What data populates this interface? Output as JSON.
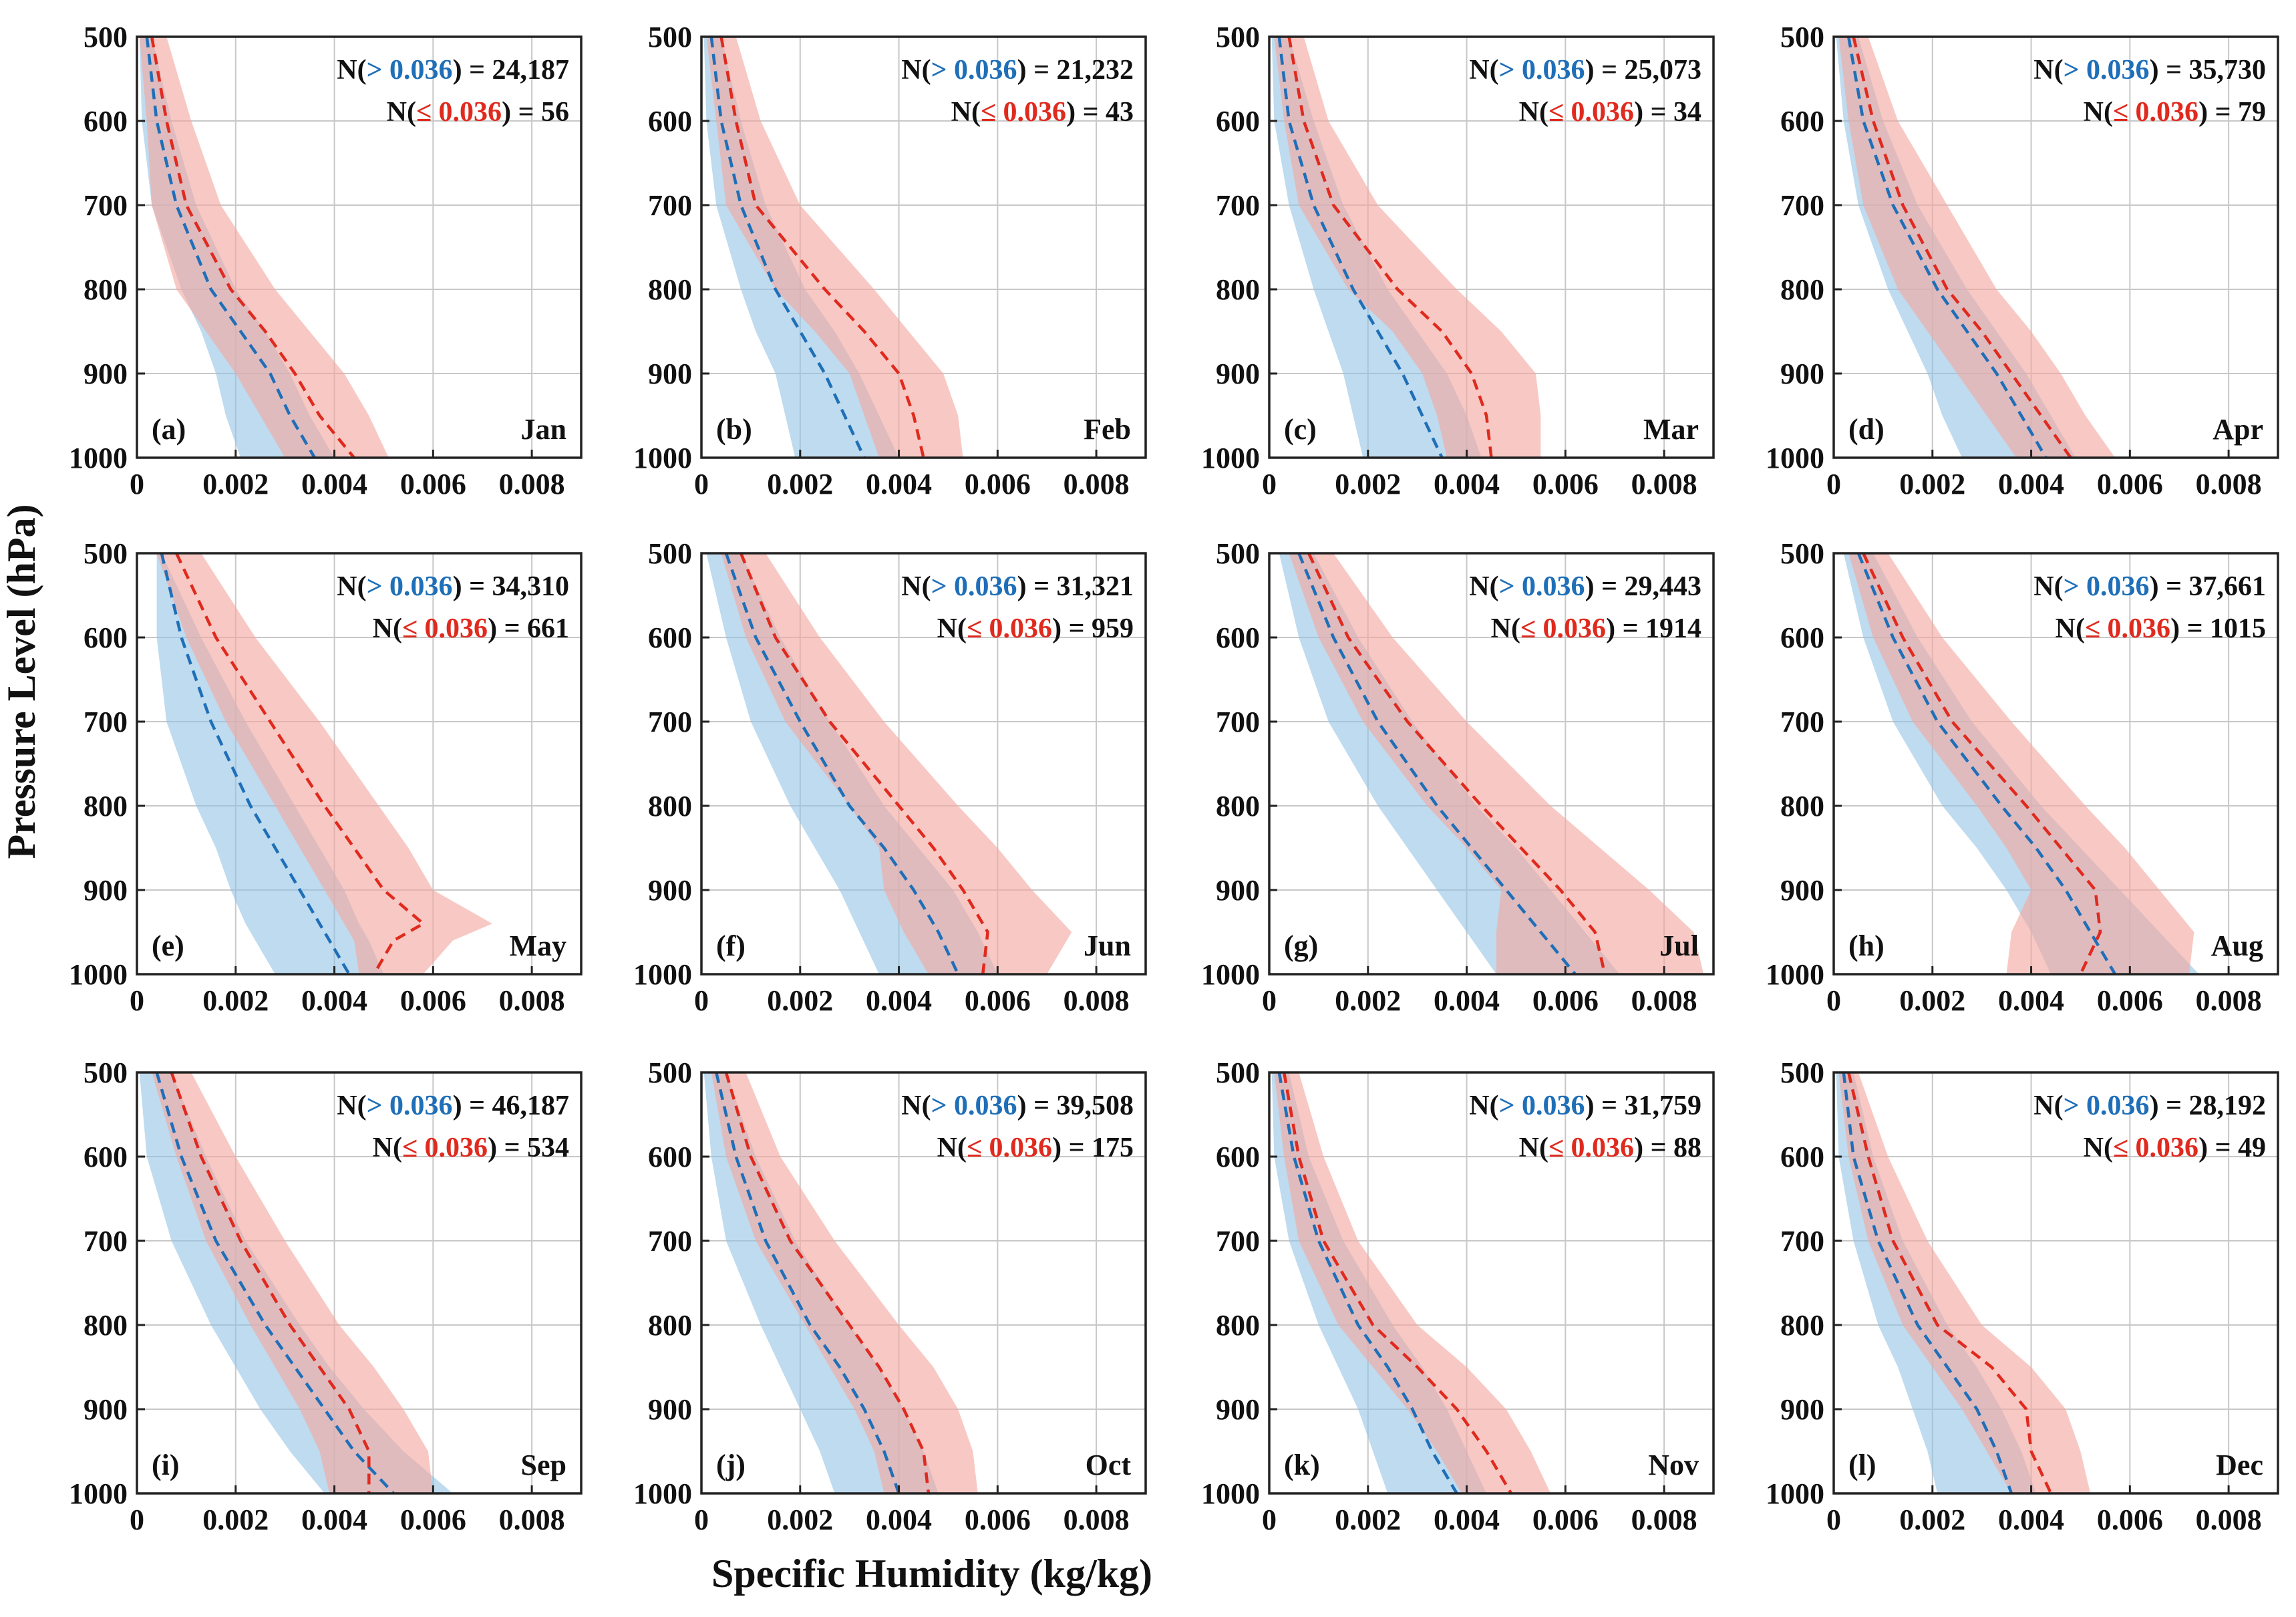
{
  "figure": {
    "ylabel": "Pressure Level (hPa)",
    "xlabel": "Specific Humidity (kg/kg)",
    "colors": {
      "above": "#1f6fb8",
      "below": "#e02a1e",
      "above_band": "#8fc1e3",
      "below_band": "#f4a8a0"
    }
  },
  "chart_data": [
    {
      "type": "area",
      "title": "Jan",
      "tag": "(a)",
      "ann_prefix": "N(",
      "ann_suffix": ")",
      "ann_gt": "> 0.036",
      "ann_le": "≤ 0.036",
      "n_gt": "= 24,187",
      "n_le": "= 56",
      "xlim": [
        0,
        0.009
      ],
      "ylim": [
        500,
        1000
      ],
      "xticks": [
        "0",
        "0.002",
        "0.004",
        "0.006",
        "0.008"
      ],
      "yticks": [
        "500",
        "600",
        "700",
        "800",
        "900",
        "1000"
      ],
      "p": [
        500,
        600,
        700,
        800,
        850,
        900,
        950,
        1000
      ],
      "red_mean": [
        0.0003,
        0.0006,
        0.001,
        0.0019,
        0.0026,
        0.0032,
        0.0037,
        0.0044
      ],
      "red_lo": [
        5e-05,
        0.0002,
        0.0003,
        0.0008,
        0.0014,
        0.002,
        0.0025,
        0.003
      ],
      "red_hi": [
        0.0006,
        0.0011,
        0.0017,
        0.0028,
        0.0035,
        0.0042,
        0.0047,
        0.0051
      ],
      "blue_mean": [
        0.0002,
        0.0004,
        0.0008,
        0.0015,
        0.0021,
        0.0027,
        0.0031,
        0.0036
      ],
      "blue_lo": [
        5e-05,
        0.0001,
        0.0003,
        0.0009,
        0.0013,
        0.0016,
        0.0018,
        0.0021
      ],
      "blue_hi": [
        0.0003,
        0.0007,
        0.0012,
        0.002,
        0.0026,
        0.0031,
        0.0035,
        0.004
      ]
    },
    {
      "type": "area",
      "title": "Feb",
      "tag": "(b)",
      "ann_prefix": "N(",
      "ann_suffix": ")",
      "ann_gt": "> 0.036",
      "ann_le": "≤ 0.036",
      "n_gt": "= 21,232",
      "n_le": "= 43",
      "xlim": [
        0,
        0.009
      ],
      "ylim": [
        500,
        1000
      ],
      "xticks": [
        "0",
        "0.002",
        "0.004",
        "0.006",
        "0.008"
      ],
      "yticks": [
        "500",
        "600",
        "700",
        "800",
        "900",
        "1000"
      ],
      "p": [
        500,
        600,
        700,
        800,
        850,
        900,
        950,
        1000
      ],
      "red_mean": [
        0.0004,
        0.0007,
        0.0011,
        0.0025,
        0.0033,
        0.004,
        0.0043,
        0.0045
      ],
      "red_lo": [
        0.0001,
        0.0003,
        0.0005,
        0.0015,
        0.0023,
        0.003,
        0.0033,
        0.0036
      ],
      "red_hi": [
        0.0007,
        0.0012,
        0.002,
        0.0035,
        0.0042,
        0.0049,
        0.0052,
        0.0053
      ],
      "blue_mean": [
        0.0002,
        0.0004,
        0.0008,
        0.0015,
        0.002,
        0.0025,
        0.0029,
        0.0033
      ],
      "blue_lo": [
        5e-05,
        0.0001,
        0.0003,
        0.0008,
        0.0011,
        0.0015,
        0.0017,
        0.0019
      ],
      "blue_hi": [
        0.0004,
        0.0008,
        0.0013,
        0.0021,
        0.0027,
        0.0032,
        0.0036,
        0.004
      ]
    },
    {
      "type": "area",
      "title": "Mar",
      "tag": "(c)",
      "ann_prefix": "N(",
      "ann_suffix": ")",
      "ann_gt": "> 0.036",
      "ann_le": "≤ 0.036",
      "n_gt": "= 25,073",
      "n_le": "= 34",
      "xlim": [
        0,
        0.009
      ],
      "ylim": [
        500,
        1000
      ],
      "xticks": [
        "0",
        "0.002",
        "0.004",
        "0.006",
        "0.008"
      ],
      "yticks": [
        "500",
        "600",
        "700",
        "800",
        "900",
        "1000"
      ],
      "p": [
        500,
        600,
        700,
        800,
        850,
        900,
        950,
        1000
      ],
      "red_mean": [
        0.0004,
        0.0007,
        0.0013,
        0.0026,
        0.0035,
        0.0041,
        0.0044,
        0.0045
      ],
      "red_lo": [
        0.0001,
        0.0003,
        0.0006,
        0.0016,
        0.0025,
        0.0031,
        0.0034,
        0.0036
      ],
      "red_hi": [
        0.0007,
        0.0012,
        0.0022,
        0.0038,
        0.0047,
        0.0054,
        0.0055,
        0.0055
      ],
      "blue_mean": [
        0.0002,
        0.0004,
        0.0009,
        0.0017,
        0.0022,
        0.0027,
        0.0031,
        0.0035
      ],
      "blue_lo": [
        5e-05,
        0.0001,
        0.0004,
        0.0009,
        0.0012,
        0.0015,
        0.0017,
        0.0019
      ],
      "blue_hi": [
        0.0004,
        0.0009,
        0.0015,
        0.0024,
        0.003,
        0.0036,
        0.004,
        0.0043
      ]
    },
    {
      "type": "area",
      "title": "Apr",
      "tag": "(d)",
      "ann_prefix": "N(",
      "ann_suffix": ")",
      "ann_gt": "> 0.036",
      "ann_le": "≤ 0.036",
      "n_gt": "= 35,730",
      "n_le": "= 79",
      "xlim": [
        0,
        0.009
      ],
      "ylim": [
        500,
        1000
      ],
      "xticks": [
        "0",
        "0.002",
        "0.004",
        "0.006",
        "0.008"
      ],
      "yticks": [
        "500",
        "600",
        "700",
        "800",
        "900",
        "1000"
      ],
      "p": [
        500,
        600,
        700,
        800,
        850,
        900,
        950,
        1000
      ],
      "red_mean": [
        0.0004,
        0.0008,
        0.0014,
        0.0023,
        0.003,
        0.0036,
        0.0042,
        0.0048
      ],
      "red_lo": [
        0.0001,
        0.0003,
        0.0006,
        0.0013,
        0.0019,
        0.0025,
        0.0031,
        0.0037
      ],
      "red_hi": [
        0.0007,
        0.0013,
        0.0023,
        0.0033,
        0.004,
        0.0046,
        0.0051,
        0.0057
      ],
      "blue_mean": [
        0.0003,
        0.0006,
        0.0012,
        0.0021,
        0.0027,
        0.0033,
        0.0038,
        0.0043
      ],
      "blue_lo": [
        5e-05,
        0.0002,
        0.0005,
        0.0011,
        0.0015,
        0.0019,
        0.0022,
        0.0026
      ],
      "blue_hi": [
        0.0005,
        0.001,
        0.0017,
        0.0027,
        0.0033,
        0.0039,
        0.0044,
        0.0049
      ]
    },
    {
      "type": "area",
      "title": "May",
      "tag": "(e)",
      "ann_prefix": "N(",
      "ann_suffix": ")",
      "ann_gt": "> 0.036",
      "ann_le": "≤ 0.036",
      "n_gt": "= 34,310",
      "n_le": "= 661",
      "xlim": [
        0,
        0.009
      ],
      "ylim": [
        500,
        1000
      ],
      "xticks": [
        "0",
        "0.002",
        "0.004",
        "0.006",
        "0.008"
      ],
      "yticks": [
        "500",
        "600",
        "700",
        "800",
        "900",
        "1000"
      ],
      "p": [
        500,
        600,
        700,
        800,
        850,
        900,
        940,
        960,
        1000
      ],
      "red_mean": [
        0.0008,
        0.0016,
        0.0027,
        0.0038,
        0.0044,
        0.005,
        0.0058,
        0.0052,
        0.0048
      ],
      "red_lo": [
        0.0004,
        0.001,
        0.0018,
        0.0028,
        0.0033,
        0.0038,
        0.0042,
        0.0044,
        0.0045
      ],
      "red_hi": [
        0.0013,
        0.0024,
        0.0037,
        0.0049,
        0.0055,
        0.006,
        0.0072,
        0.0064,
        0.0058
      ],
      "blue_mean": [
        0.0005,
        0.0009,
        0.0015,
        0.0023,
        0.0028,
        0.0033,
        0.0037,
        0.0039,
        0.0043
      ],
      "blue_lo": [
        0.0004,
        0.0004,
        0.0006,
        0.0012,
        0.0016,
        0.0019,
        0.0022,
        0.0024,
        0.0028
      ],
      "blue_hi": [
        0.0005,
        0.0013,
        0.0022,
        0.0032,
        0.0037,
        0.0042,
        0.0045,
        0.0047,
        0.005
      ]
    },
    {
      "type": "area",
      "title": "Jun",
      "tag": "(f)",
      "ann_prefix": "N(",
      "ann_suffix": ")",
      "ann_gt": "> 0.036",
      "ann_le": "≤ 0.036",
      "n_gt": "= 31,321",
      "n_le": "= 959",
      "xlim": [
        0,
        0.009
      ],
      "ylim": [
        500,
        1000
      ],
      "xticks": [
        "0",
        "0.002",
        "0.004",
        "0.006",
        "0.008"
      ],
      "yticks": [
        "500",
        "600",
        "700",
        "800",
        "900",
        "1000"
      ],
      "p": [
        500,
        600,
        700,
        800,
        850,
        900,
        950,
        1000
      ],
      "red_mean": [
        0.0008,
        0.0015,
        0.0026,
        0.004,
        0.0047,
        0.0053,
        0.0058,
        0.0057
      ],
      "red_lo": [
        0.0004,
        0.0009,
        0.0017,
        0.003,
        0.0036,
        0.0037,
        0.0041,
        0.0046
      ],
      "red_hi": [
        0.0013,
        0.0024,
        0.0037,
        0.0052,
        0.006,
        0.0067,
        0.0075,
        0.007
      ],
      "blue_mean": [
        0.0005,
        0.0011,
        0.002,
        0.003,
        0.0037,
        0.0043,
        0.0048,
        0.0052
      ],
      "blue_lo": [
        0.0001,
        0.0005,
        0.001,
        0.0018,
        0.0023,
        0.0028,
        0.0032,
        0.0036
      ],
      "blue_hi": [
        0.0008,
        0.0016,
        0.0026,
        0.0037,
        0.0044,
        0.0051,
        0.0056,
        0.006
      ]
    },
    {
      "type": "area",
      "title": "Jul",
      "tag": "(g)",
      "ann_prefix": "N(",
      "ann_suffix": ")",
      "ann_gt": "> 0.036",
      "ann_le": "≤ 0.036",
      "n_gt": "= 29,443",
      "n_le": "= 1914",
      "xlim": [
        0,
        0.009
      ],
      "ylim": [
        500,
        1000
      ],
      "xticks": [
        "0",
        "0.002",
        "0.004",
        "0.006",
        "0.008"
      ],
      "yticks": [
        "500",
        "600",
        "700",
        "800",
        "900",
        "1000"
      ],
      "p": [
        500,
        600,
        700,
        800,
        850,
        900,
        950,
        1000
      ],
      "red_mean": [
        0.0008,
        0.0016,
        0.0028,
        0.0043,
        0.0051,
        0.0059,
        0.0066,
        0.0068
      ],
      "red_lo": [
        0.0004,
        0.001,
        0.0019,
        0.0032,
        0.004,
        0.0047,
        0.0046,
        0.0046
      ],
      "red_hi": [
        0.0013,
        0.0025,
        0.004,
        0.0057,
        0.0067,
        0.0077,
        0.0086,
        0.0088
      ],
      "blue_mean": [
        0.0006,
        0.0013,
        0.0022,
        0.0034,
        0.0041,
        0.0048,
        0.0055,
        0.0062
      ],
      "blue_lo": [
        0.0002,
        0.0006,
        0.0012,
        0.0022,
        0.0028,
        0.0034,
        0.004,
        0.0046
      ],
      "blue_hi": [
        0.0009,
        0.0018,
        0.0029,
        0.0042,
        0.005,
        0.0057,
        0.0064,
        0.0071
      ]
    },
    {
      "type": "area",
      "title": "Aug",
      "tag": "(h)",
      "ann_prefix": "N(",
      "ann_suffix": ")",
      "ann_gt": "> 0.036",
      "ann_le": "≤ 0.036",
      "n_gt": "= 37,661",
      "n_le": "= 1015",
      "xlim": [
        0,
        0.009
      ],
      "ylim": [
        500,
        1000
      ],
      "xticks": [
        "0",
        "0.002",
        "0.004",
        "0.006",
        "0.008"
      ],
      "yticks": [
        "500",
        "600",
        "700",
        "800",
        "900",
        "1000"
      ],
      "p": [
        500,
        600,
        700,
        800,
        850,
        900,
        950,
        1000
      ],
      "red_mean": [
        0.0006,
        0.0014,
        0.0024,
        0.0039,
        0.0046,
        0.0053,
        0.0054,
        0.005
      ],
      "red_lo": [
        0.0003,
        0.0008,
        0.0016,
        0.0029,
        0.0035,
        0.004,
        0.0036,
        0.0035
      ],
      "red_hi": [
        0.0011,
        0.0022,
        0.0036,
        0.0051,
        0.0059,
        0.0066,
        0.0073,
        0.0072
      ],
      "blue_mean": [
        0.0005,
        0.0012,
        0.0021,
        0.0034,
        0.0041,
        0.0047,
        0.0052,
        0.0057
      ],
      "blue_lo": [
        0.0002,
        0.0006,
        0.0012,
        0.0022,
        0.0029,
        0.0035,
        0.004,
        0.0044
      ],
      "blue_hi": [
        0.0008,
        0.0017,
        0.0028,
        0.0042,
        0.005,
        0.0058,
        0.0066,
        0.0074
      ]
    },
    {
      "type": "area",
      "title": "Sep",
      "tag": "(i)",
      "ann_prefix": "N(",
      "ann_suffix": ")",
      "ann_gt": "> 0.036",
      "ann_le": "≤ 0.036",
      "n_gt": "= 46,187",
      "n_le": "= 534",
      "xlim": [
        0,
        0.009
      ],
      "ylim": [
        500,
        1000
      ],
      "xticks": [
        "0",
        "0.002",
        "0.004",
        "0.006",
        "0.008"
      ],
      "yticks": [
        "500",
        "600",
        "700",
        "800",
        "900",
        "1000"
      ],
      "p": [
        500,
        600,
        700,
        800,
        850,
        900,
        950,
        1000
      ],
      "red_mean": [
        0.0007,
        0.0013,
        0.0021,
        0.0031,
        0.0037,
        0.0043,
        0.0047,
        0.0047
      ],
      "red_lo": [
        0.0003,
        0.0008,
        0.0014,
        0.0023,
        0.0028,
        0.0033,
        0.0037,
        0.0039
      ],
      "red_hi": [
        0.0011,
        0.002,
        0.003,
        0.0041,
        0.0048,
        0.0054,
        0.0059,
        0.006
      ],
      "blue_mean": [
        0.0004,
        0.0009,
        0.0016,
        0.0026,
        0.0032,
        0.0038,
        0.0044,
        0.0052
      ],
      "blue_lo": [
        5e-05,
        0.0002,
        0.0007,
        0.0015,
        0.002,
        0.0025,
        0.0031,
        0.0038
      ],
      "blue_hi": [
        0.0007,
        0.0014,
        0.0022,
        0.0033,
        0.0039,
        0.0046,
        0.0054,
        0.0064
      ]
    },
    {
      "type": "area",
      "title": "Oct",
      "tag": "(j)",
      "ann_prefix": "N(",
      "ann_suffix": ")",
      "ann_gt": "> 0.036",
      "ann_le": "≤ 0.036",
      "n_gt": "= 39,508",
      "n_le": "= 175",
      "xlim": [
        0,
        0.009
      ],
      "ylim": [
        500,
        1000
      ],
      "xticks": [
        "0",
        "0.002",
        "0.004",
        "0.006",
        "0.008"
      ],
      "yticks": [
        "500",
        "600",
        "700",
        "800",
        "900",
        "1000"
      ],
      "p": [
        500,
        600,
        700,
        800,
        850,
        900,
        950,
        1000
      ],
      "red_mean": [
        0.0005,
        0.001,
        0.0018,
        0.003,
        0.0036,
        0.0041,
        0.0045,
        0.0046
      ],
      "red_lo": [
        0.0002,
        0.0005,
        0.0011,
        0.0021,
        0.0026,
        0.0031,
        0.0035,
        0.0037
      ],
      "red_hi": [
        0.0009,
        0.0016,
        0.0027,
        0.004,
        0.0047,
        0.0052,
        0.0055,
        0.0056
      ],
      "blue_mean": [
        0.0003,
        0.0007,
        0.0013,
        0.0022,
        0.0028,
        0.0033,
        0.0037,
        0.004
      ],
      "blue_lo": [
        5e-05,
        0.0002,
        0.0005,
        0.0012,
        0.0016,
        0.002,
        0.0024,
        0.0027
      ],
      "blue_hi": [
        0.0005,
        0.0011,
        0.0019,
        0.003,
        0.0036,
        0.0041,
        0.0045,
        0.0048
      ]
    },
    {
      "type": "area",
      "title": "Nov",
      "tag": "(k)",
      "ann_prefix": "N(",
      "ann_suffix": ")",
      "ann_gt": "> 0.036",
      "ann_le": "≤ 0.036",
      "n_gt": "= 31,759",
      "n_le": "= 88",
      "xlim": [
        0,
        0.009
      ],
      "ylim": [
        500,
        1000
      ],
      "xticks": [
        "0",
        "0.002",
        "0.004",
        "0.006",
        "0.008"
      ],
      "yticks": [
        "500",
        "600",
        "700",
        "800",
        "900",
        "1000"
      ],
      "p": [
        500,
        600,
        700,
        800,
        850,
        900,
        950,
        1000
      ],
      "red_mean": [
        0.0003,
        0.0006,
        0.0011,
        0.0021,
        0.003,
        0.0038,
        0.0044,
        0.0049
      ],
      "red_lo": [
        0.0001,
        0.0003,
        0.0006,
        0.0014,
        0.0021,
        0.0028,
        0.0034,
        0.0039
      ],
      "red_hi": [
        0.0006,
        0.0011,
        0.0018,
        0.003,
        0.004,
        0.0048,
        0.0053,
        0.0057
      ],
      "blue_mean": [
        0.0002,
        0.0005,
        0.001,
        0.0018,
        0.0024,
        0.0029,
        0.0033,
        0.0038
      ],
      "blue_lo": [
        5e-05,
        0.0001,
        0.0004,
        0.001,
        0.0014,
        0.0018,
        0.0021,
        0.0024
      ],
      "blue_hi": [
        0.0004,
        0.0008,
        0.0015,
        0.0025,
        0.0031,
        0.0036,
        0.004,
        0.0044
      ]
    },
    {
      "type": "area",
      "title": "Dec",
      "tag": "(l)",
      "ann_prefix": "N(",
      "ann_suffix": ")",
      "ann_gt": "> 0.036",
      "ann_le": "≤ 0.036",
      "n_gt": "= 28,192",
      "n_le": "= 49",
      "xlim": [
        0,
        0.009
      ],
      "ylim": [
        500,
        1000
      ],
      "xticks": [
        "0",
        "0.002",
        "0.004",
        "0.006",
        "0.008"
      ],
      "yticks": [
        "500",
        "600",
        "700",
        "800",
        "900",
        "1000"
      ],
      "p": [
        500,
        600,
        700,
        800,
        850,
        900,
        950,
        1000
      ],
      "red_mean": [
        0.0003,
        0.0007,
        0.0012,
        0.0021,
        0.0032,
        0.0039,
        0.004,
        0.0044
      ],
      "red_lo": [
        0.0001,
        0.0003,
        0.0007,
        0.0014,
        0.002,
        0.0026,
        0.0031,
        0.0036
      ],
      "red_hi": [
        0.0005,
        0.0011,
        0.0019,
        0.003,
        0.004,
        0.0047,
        0.005,
        0.0052
      ],
      "blue_mean": [
        0.0002,
        0.0004,
        0.0009,
        0.0017,
        0.0023,
        0.0029,
        0.0033,
        0.0036
      ],
      "blue_lo": [
        5e-05,
        0.0001,
        0.0004,
        0.0009,
        0.0013,
        0.0016,
        0.0019,
        0.0021
      ],
      "blue_hi": [
        0.0004,
        0.0008,
        0.0014,
        0.0023,
        0.0029,
        0.0034,
        0.0038,
        0.0041
      ]
    }
  ]
}
